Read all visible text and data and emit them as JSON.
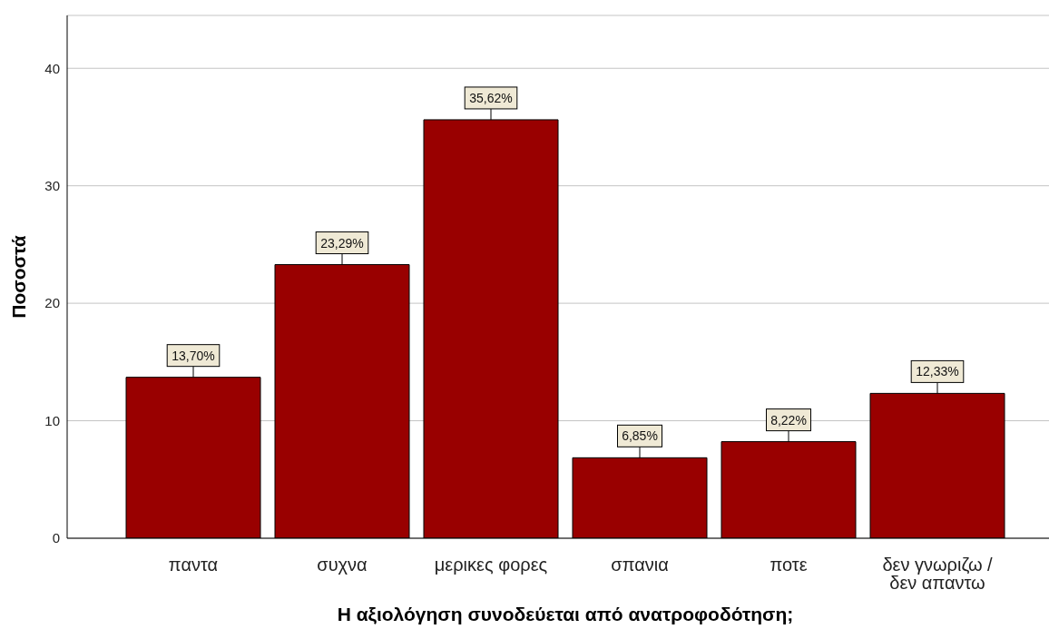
{
  "chart_data": {
    "type": "bar",
    "xlabel": "Η αξιολόγηση συνοδεύεται από ανατροφοδότηση;",
    "ylabel": "Ποσοστά",
    "categories": [
      "παντα",
      "συχνα",
      "μερικες φορες",
      "σπανια",
      "ποτε",
      "δεν γνωριζω / δεν απαντω"
    ],
    "values": [
      13.7,
      23.29,
      35.62,
      6.85,
      8.22,
      12.33
    ],
    "value_labels": [
      "13,70%",
      "23,29%",
      "35,62%",
      "6,85%",
      "8,22%",
      "12,33%"
    ],
    "color": "#990000",
    "ylim": [
      0,
      44.5
    ],
    "yticks": [
      0,
      10,
      20,
      30,
      40
    ],
    "grid": "y"
  }
}
